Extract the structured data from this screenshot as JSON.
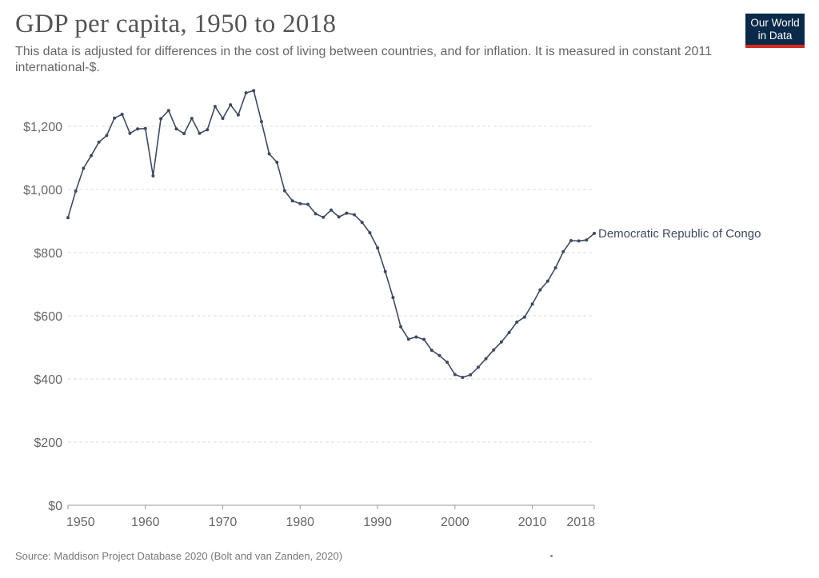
{
  "header": {
    "title": "GDP per capita, 1950 to 2018",
    "subtitle": "This data is adjusted for differences in the cost of living between countries, and for inflation. It is measured in constant 2011 international-$."
  },
  "logo": {
    "line1": "Our World",
    "line2": "in Data"
  },
  "footer": {
    "source": "Source: Maddison Project Database 2020 (Bolt and van Zanden, 2020)"
  },
  "colors": {
    "series": "#3d4a60",
    "grid": "#dddddd",
    "axis": "#999999",
    "logo_bg": "#0b2a4a",
    "logo_accent": "#d42b21"
  },
  "chart_data": {
    "type": "line",
    "title": "GDP per capita, 1950 to 2018",
    "xlabel": "",
    "ylabel": "",
    "xlim": [
      1950,
      2018
    ],
    "ylim": [
      0,
      1200
    ],
    "y_ticks": [
      0,
      200,
      400,
      600,
      800,
      1000,
      1200
    ],
    "y_tick_labels": [
      "$0",
      "$200",
      "$400",
      "$600",
      "$800",
      "$1,000",
      "$1,200"
    ],
    "x_ticks": [
      1950,
      1960,
      1970,
      1980,
      1990,
      2000,
      2010,
      2018
    ],
    "x_tick_labels": [
      "1950",
      "1960",
      "1970",
      "1980",
      "1990",
      "2000",
      "2010",
      "2018"
    ],
    "grid": "horizontal dashed",
    "series": [
      {
        "name": "Democratic Republic of Congo",
        "x": [
          1950,
          1951,
          1952,
          1953,
          1954,
          1955,
          1956,
          1957,
          1958,
          1959,
          1960,
          1961,
          1962,
          1963,
          1964,
          1965,
          1966,
          1967,
          1968,
          1969,
          1970,
          1971,
          1972,
          1973,
          1974,
          1975,
          1976,
          1977,
          1978,
          1979,
          1980,
          1981,
          1982,
          1983,
          1984,
          1985,
          1986,
          1987,
          1988,
          1989,
          1990,
          1991,
          1992,
          1993,
          1994,
          1995,
          1996,
          1997,
          1998,
          1999,
          2000,
          2001,
          2002,
          2003,
          2004,
          2005,
          2006,
          2007,
          2008,
          2009,
          2010,
          2011,
          2012,
          2013,
          2014,
          2015,
          2016,
          2017,
          2018
        ],
        "values": [
          911,
          995,
          1067,
          1107,
          1150,
          1171,
          1226,
          1238,
          1178,
          1192,
          1193,
          1043,
          1224,
          1250,
          1192,
          1177,
          1225,
          1178,
          1189,
          1263,
          1225,
          1268,
          1236,
          1306,
          1313,
          1215,
          1113,
          1086,
          996,
          964,
          955,
          953,
          923,
          912,
          935,
          913,
          925,
          920,
          896,
          863,
          815,
          740,
          658,
          565,
          526,
          533,
          525,
          491,
          474,
          453,
          414,
          405,
          413,
          437,
          464,
          492,
          517,
          547,
          580,
          596,
          637,
          682,
          710,
          752,
          803,
          838,
          837,
          840,
          861
        ]
      }
    ]
  }
}
